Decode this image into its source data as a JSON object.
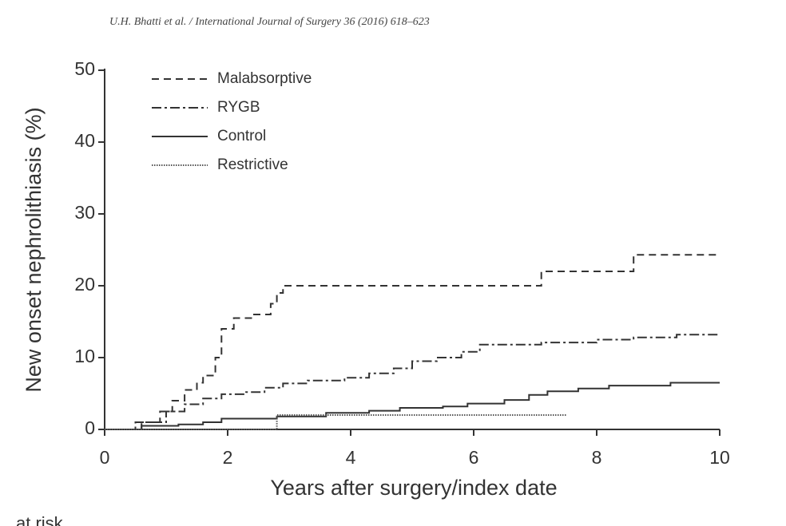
{
  "header": "U.H. Bhatti et al. / International Journal of Surgery 36 (2016) 618–623",
  "footer_fragment": "at risk",
  "chart_data": {
    "type": "step",
    "xlabel": "Years after surgery/index date",
    "ylabel": "New onset nephrolithiasis (%)",
    "xlim": [
      0,
      10
    ],
    "ylim": [
      0,
      50
    ],
    "xticks": [
      0,
      2,
      4,
      6,
      8,
      10
    ],
    "yticks": [
      0,
      10,
      20,
      30,
      40,
      50
    ],
    "grid": false,
    "legend": "upper left",
    "series": [
      {
        "name": "Malabsorptive",
        "color": "#333333",
        "dash": "9,6",
        "x": [
          0,
          0.6,
          0.9,
          1.1,
          1.3,
          1.5,
          1.6,
          1.8,
          1.9,
          2.1,
          2.4,
          2.7,
          2.8,
          2.9,
          7.1,
          8.6,
          10
        ],
        "values": [
          0,
          1,
          2.5,
          4,
          5.5,
          6.5,
          7.5,
          10,
          14,
          15.5,
          16,
          17.5,
          19,
          20,
          22,
          24.3,
          24.3
        ]
      },
      {
        "name": "RYGB",
        "color": "#333333",
        "dash": "12,4,3,4",
        "x": [
          0,
          0.5,
          1,
          1.3,
          1.6,
          1.9,
          2.3,
          2.6,
          2.9,
          3.3,
          3.9,
          4.3,
          4.7,
          5.0,
          5.4,
          5.8,
          6.1,
          7.1,
          8.0,
          8.6,
          9.3,
          10
        ],
        "values": [
          0,
          1,
          2.5,
          3.5,
          4.3,
          4.9,
          5.2,
          5.8,
          6.4,
          6.8,
          7.2,
          7.8,
          8.5,
          9.5,
          10,
          10.8,
          11.8,
          12.1,
          12.5,
          12.8,
          13.2,
          13.2
        ]
      },
      {
        "name": "Control",
        "color": "#333333",
        "dash": "none",
        "x": [
          0,
          0.6,
          1.2,
          1.6,
          1.9,
          2.8,
          3.6,
          4.3,
          4.8,
          5.5,
          5.9,
          6.5,
          6.9,
          7.2,
          7.7,
          8.2,
          9.2,
          10
        ],
        "values": [
          0,
          0.5,
          0.7,
          1.0,
          1.5,
          1.8,
          2.3,
          2.6,
          3.0,
          3.2,
          3.6,
          4.1,
          4.8,
          5.3,
          5.7,
          6.1,
          6.5,
          6.5
        ]
      },
      {
        "name": "Restrictive",
        "color": "#555555",
        "dash": "1.5,1.5",
        "x": [
          0,
          2.8,
          7.5
        ],
        "values": [
          0,
          2.0,
          2.0
        ]
      }
    ]
  }
}
